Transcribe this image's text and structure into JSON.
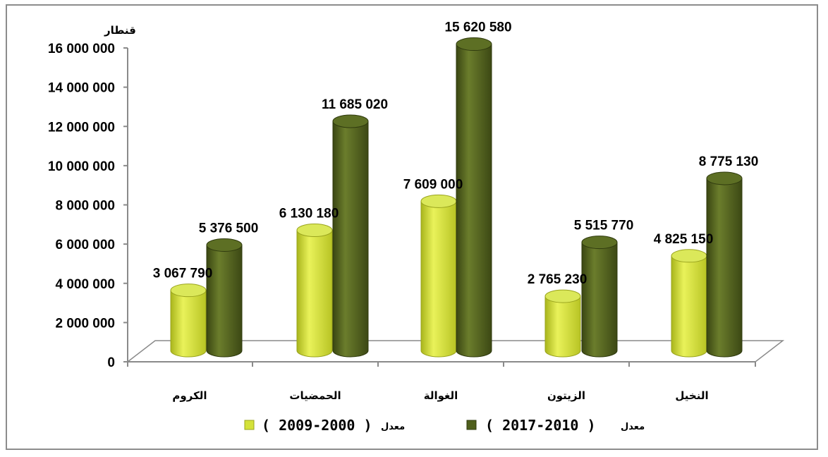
{
  "chart_data": {
    "type": "bar",
    "title": "",
    "ylabel": "قنطار",
    "xlabel": "",
    "ylim": [
      0,
      16000000
    ],
    "yticks": [
      0,
      2000000,
      4000000,
      6000000,
      8000000,
      10000000,
      12000000,
      14000000,
      16000000
    ],
    "ytick_labels": [
      "0",
      "2 000 000",
      "4 000 000",
      "6 000 000",
      "8 000 000",
      "10 000 000",
      "12 000 000",
      "14 000 000",
      "16 000 000"
    ],
    "categories": [
      "الكروم",
      "الحمضيات",
      "الغوالة",
      "الزيتون",
      "النخيل"
    ],
    "series": [
      {
        "name": "( 2009-2000 )",
        "name_prefix": "معدل",
        "color": "#d4e23a",
        "values": [
          3067790,
          6130180,
          7609000,
          2765230,
          4825150
        ],
        "labels": [
          "3 067 790",
          "6 130 180",
          "7 609 000",
          "2 765 230",
          "4 825 150"
        ]
      },
      {
        "name": "( 2017-2010 )",
        "name_prefix": "معدل",
        "color": "#4f5f1c",
        "values": [
          5376500,
          11685020,
          15620580,
          5515770,
          8775130
        ],
        "labels": [
          "5 376 500",
          "11 685 020",
          "15 620 580",
          "5 515 770",
          "8 775 130"
        ]
      }
    ],
    "grid": false,
    "legend": "bottom"
  }
}
